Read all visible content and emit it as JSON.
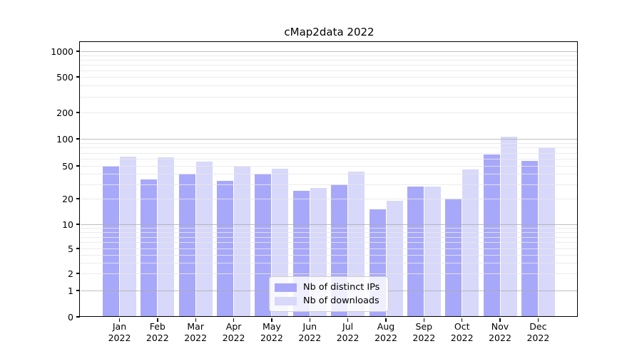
{
  "figure": {
    "background": "#ffffff"
  },
  "chart_data": {
    "type": "bar",
    "title": "cMap2data 2022",
    "categories": [
      "Jan",
      "Feb",
      "Mar",
      "Apr",
      "May",
      "Jun",
      "Jul",
      "Aug",
      "Sep",
      "Oct",
      "Nov",
      "Dec"
    ],
    "category_year": "2022",
    "series": [
      {
        "name": "Nb of distinct IPs",
        "color": "#a8a8fa",
        "values": [
          50,
          34,
          40,
          33,
          40,
          25,
          30,
          15,
          28,
          20,
          67,
          57
        ]
      },
      {
        "name": "Nb of downloads",
        "color": "#d8d8fa",
        "values": [
          64,
          62,
          56,
          49,
          46,
          27,
          43,
          19,
          28,
          45,
          106,
          81
        ]
      }
    ],
    "xlabel": "",
    "ylabel": "",
    "yscale": "symlog",
    "ylim": [
      0,
      1300
    ],
    "y_ticks": [
      0,
      1,
      2,
      5,
      10,
      20,
      50,
      100,
      200,
      500,
      1000
    ],
    "grid_major": [
      1,
      10,
      100,
      1000
    ],
    "grid_minor": [
      2,
      3,
      4,
      5,
      6,
      7,
      8,
      9,
      20,
      30,
      40,
      50,
      60,
      70,
      80,
      90,
      200,
      300,
      400,
      500,
      600,
      700,
      800,
      900
    ],
    "grid_on": true,
    "legend_position": "lower center"
  }
}
